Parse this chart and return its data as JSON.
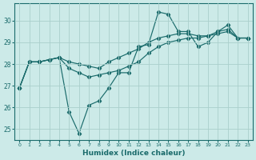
{
  "xlabel": "Humidex (Indice chaleur)",
  "ylabel": "",
  "background_color": "#cceae8",
  "grid_color": "#aacfcc",
  "line_color": "#1a6b6b",
  "xlim": [
    -0.5,
    23.5
  ],
  "ylim": [
    24.5,
    30.8
  ],
  "yticks": [
    25,
    26,
    27,
    28,
    29,
    30
  ],
  "xticks": [
    0,
    1,
    2,
    3,
    4,
    5,
    6,
    7,
    8,
    9,
    10,
    11,
    12,
    13,
    14,
    15,
    16,
    17,
    18,
    19,
    20,
    21,
    22,
    23
  ],
  "series": [
    [
      26.9,
      28.1,
      28.1,
      28.2,
      28.3,
      27.8,
      27.6,
      27.4,
      27.5,
      27.6,
      27.7,
      27.9,
      28.1,
      28.5,
      28.8,
      29.0,
      29.1,
      29.2,
      29.2,
      29.3,
      29.4,
      29.5,
      29.2,
      29.2
    ],
    [
      26.9,
      28.1,
      28.1,
      28.2,
      28.3,
      28.1,
      28.0,
      27.9,
      27.8,
      28.1,
      28.3,
      28.5,
      28.7,
      29.0,
      29.2,
      29.3,
      29.4,
      29.4,
      29.3,
      29.3,
      29.5,
      29.6,
      29.2,
      29.2
    ],
    [
      26.9,
      28.1,
      28.1,
      28.2,
      28.3,
      25.8,
      24.8,
      26.1,
      26.3,
      26.9,
      27.6,
      27.6,
      28.8,
      28.9,
      30.4,
      30.3,
      29.5,
      29.5,
      28.8,
      29.0,
      29.5,
      29.8,
      29.2,
      29.2
    ]
  ]
}
